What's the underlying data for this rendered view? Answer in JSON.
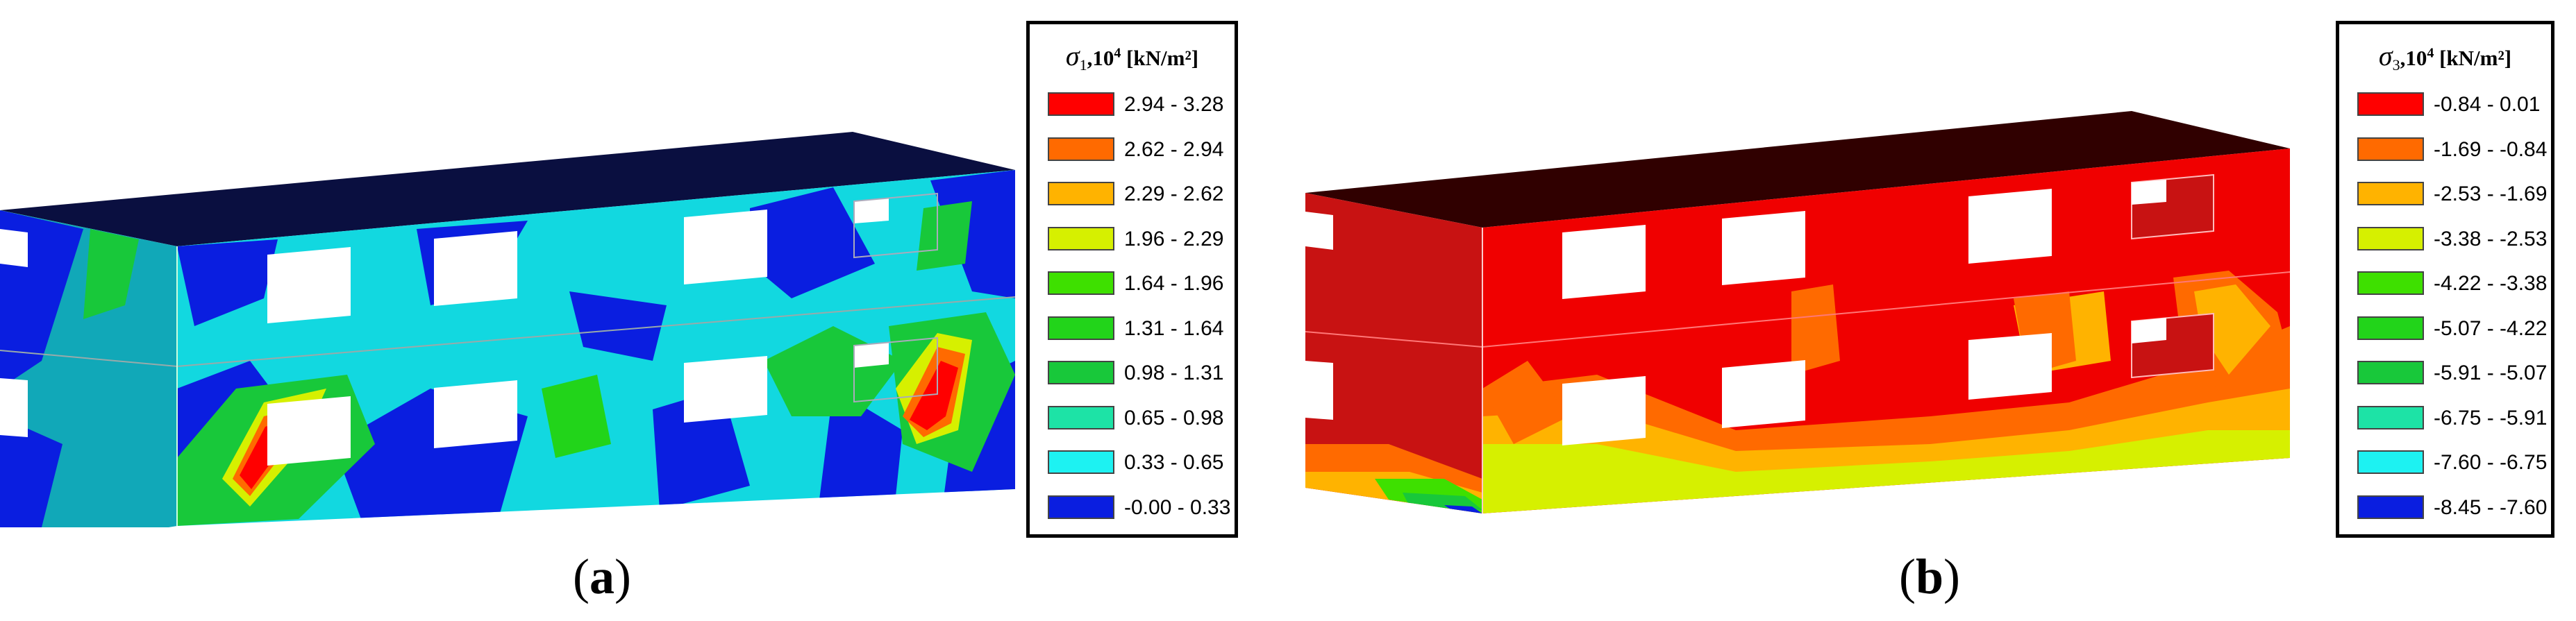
{
  "figures": [
    {
      "caption": {
        "open": "(",
        "letter": "a",
        "close": ")"
      },
      "legend": {
        "symbol": "σ",
        "subscript": "1",
        "unit_prefix": ",10",
        "exponent": "4",
        "unit": "[kN/m²]",
        "entries": [
          {
            "range": "2.94 - 3.28",
            "color": "#ff0000"
          },
          {
            "range": "2.62 - 2.94",
            "color": "#ff6a00"
          },
          {
            "range": "2.29 - 2.62",
            "color": "#ffb300"
          },
          {
            "range": "1.96 - 2.29",
            "color": "#d6f000"
          },
          {
            "range": "1.64 - 1.96",
            "color": "#3ee000"
          },
          {
            "range": "1.31 - 1.64",
            "color": "#22d41a"
          },
          {
            "range": "0.98 - 1.31",
            "color": "#18c83a"
          },
          {
            "range": "0.65 - 0.98",
            "color": "#1de3a6"
          },
          {
            "range": "0.33 - 0.65",
            "color": "#1df2f2"
          },
          {
            "range": "-0.00 - 0.33",
            "color": "#0a1ee0"
          }
        ]
      }
    },
    {
      "caption": {
        "open": "(",
        "letter": "b",
        "close": ")"
      },
      "legend": {
        "symbol": "σ",
        "subscript": "3",
        "unit_prefix": ",10",
        "exponent": "4",
        "unit": "[kN/m²]",
        "entries": [
          {
            "range": "-0.84 - 0.01",
            "color": "#ff0000"
          },
          {
            "range": "-1.69 - -0.84",
            "color": "#ff6a00"
          },
          {
            "range": "-2.53 - -1.69",
            "color": "#ffb300"
          },
          {
            "range": "-3.38 - -2.53",
            "color": "#d6f000"
          },
          {
            "range": "-4.22 - -3.38",
            "color": "#3ee000"
          },
          {
            "range": "-5.07 - -4.22",
            "color": "#22d41a"
          },
          {
            "range": "-5.91 - -5.07",
            "color": "#18c83a"
          },
          {
            "range": "-6.75 - -5.91",
            "color": "#1de3a6"
          },
          {
            "range": "-7.60 - -6.75",
            "color": "#1df2f2"
          },
          {
            "range": "-8.45 - -7.60",
            "color": "#0a1ee0"
          }
        ]
      }
    }
  ]
}
